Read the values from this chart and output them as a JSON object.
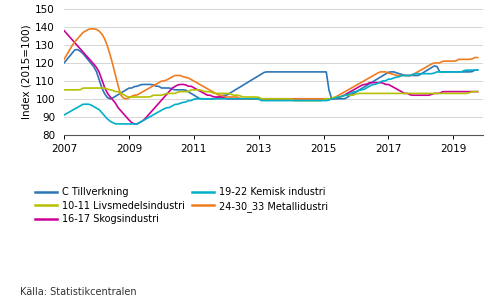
{
  "title": "",
  "ylabel": "Index (2015=100)",
  "source": "Källa: Statistikcentralen",
  "ylim": [
    80,
    150
  ],
  "yticks": [
    80,
    90,
    100,
    110,
    120,
    130,
    140,
    150
  ],
  "x_start_year": 2007,
  "x_end_year": 2019.92,
  "xticks": [
    2007,
    2009,
    2011,
    2013,
    2015,
    2017,
    2019
  ],
  "background_color": "#ffffff",
  "grid_color": "#d0d0d0",
  "series": {
    "C Tillverkning": {
      "color": "#2e75b6",
      "data": [
        120,
        122,
        124,
        126,
        128,
        127,
        126,
        124,
        122,
        120,
        118,
        115,
        110,
        105,
        102,
        100,
        100,
        101,
        102,
        103,
        104,
        105,
        106,
        106,
        107,
        107,
        108,
        108,
        108,
        108,
        108,
        107,
        107,
        106,
        106,
        106,
        106,
        105,
        105,
        105,
        105,
        105,
        104,
        103,
        102,
        101,
        100,
        100,
        100,
        100,
        100,
        100,
        101,
        101,
        102,
        102,
        103,
        104,
        105,
        106,
        107,
        108,
        109,
        110,
        111,
        112,
        113,
        114,
        115,
        115,
        115,
        115,
        115,
        115,
        115,
        115,
        115,
        115,
        115,
        115,
        115,
        115,
        115,
        115,
        115,
        115,
        115,
        115,
        115,
        115,
        100,
        100,
        100,
        100,
        100,
        100,
        101,
        102,
        103,
        104,
        105,
        106,
        107,
        108,
        109,
        110,
        111,
        112,
        113,
        114,
        115,
        115,
        115,
        114,
        114,
        113,
        113,
        113,
        113,
        113,
        113,
        114,
        115,
        116,
        117,
        118,
        119,
        115,
        115,
        115,
        115,
        115,
        115,
        115,
        115,
        115,
        115,
        115,
        115,
        116,
        116
      ]
    },
    "16-17 Skogsindustri": {
      "color": "#cc0099",
      "data": [
        138,
        136,
        134,
        132,
        130,
        128,
        126,
        124,
        122,
        120,
        118,
        115,
        110,
        105,
        102,
        100,
        98,
        95,
        93,
        91,
        89,
        87,
        86,
        86,
        87,
        88,
        90,
        92,
        94,
        96,
        98,
        100,
        102,
        104,
        106,
        107,
        108,
        108,
        108,
        107,
        107,
        106,
        105,
        104,
        103,
        102,
        102,
        101,
        101,
        101,
        101,
        100,
        100,
        100,
        100,
        100,
        100,
        100,
        100,
        100,
        100,
        100,
        100,
        100,
        100,
        100,
        100,
        100,
        100,
        100,
        100,
        100,
        100,
        100,
        100,
        100,
        100,
        100,
        100,
        100,
        100,
        100,
        100,
        100,
        100,
        100,
        101,
        101,
        102,
        103,
        104,
        105,
        106,
        107,
        108,
        108,
        109,
        109,
        109,
        109,
        109,
        108,
        108,
        107,
        106,
        105,
        104,
        103,
        103,
        102,
        102,
        102,
        102,
        102,
        102,
        102,
        103,
        103,
        103,
        104,
        104,
        104,
        104,
        104,
        104,
        104,
        104,
        104,
        104,
        104,
        104
      ]
    },
    "24-30_33 Metallidustri": {
      "color": "#f07c20",
      "data": [
        122,
        125,
        128,
        131,
        133,
        135,
        137,
        138,
        139,
        139,
        139,
        138,
        136,
        133,
        128,
        122,
        115,
        108,
        102,
        100,
        100,
        101,
        102,
        102,
        103,
        104,
        105,
        106,
        107,
        108,
        109,
        110,
        110,
        111,
        112,
        113,
        113,
        113,
        112,
        112,
        111,
        110,
        109,
        108,
        107,
        106,
        105,
        104,
        103,
        102,
        102,
        101,
        101,
        101,
        101,
        101,
        100,
        100,
        100,
        100,
        100,
        100,
        100,
        100,
        100,
        100,
        100,
        100,
        100,
        100,
        100,
        100,
        100,
        100,
        100,
        100,
        100,
        100,
        100,
        100,
        100,
        100,
        100,
        100,
        100,
        100,
        101,
        102,
        103,
        104,
        105,
        106,
        107,
        108,
        109,
        110,
        111,
        112,
        113,
        114,
        115,
        115,
        115,
        114,
        114,
        113,
        113,
        113,
        113,
        113,
        113,
        114,
        115,
        116,
        117,
        118,
        119,
        120,
        120,
        120,
        121,
        121,
        121,
        121,
        121,
        122,
        122,
        122,
        122,
        122,
        123,
        123
      ]
    },
    "10-11 Livsmedelsindustri": {
      "color": "#b5c100",
      "data": [
        105,
        105,
        105,
        105,
        105,
        105,
        106,
        106,
        106,
        106,
        106,
        106,
        106,
        106,
        105,
        105,
        104,
        104,
        103,
        102,
        101,
        101,
        101,
        101,
        101,
        101,
        101,
        101,
        102,
        102,
        102,
        102,
        103,
        103,
        103,
        103,
        104,
        104,
        104,
        104,
        105,
        105,
        105,
        105,
        104,
        104,
        104,
        103,
        103,
        103,
        103,
        103,
        103,
        102,
        102,
        102,
        101,
        101,
        101,
        101,
        101,
        101,
        100,
        100,
        100,
        100,
        100,
        100,
        100,
        100,
        100,
        100,
        99,
        99,
        99,
        99,
        99,
        99,
        99,
        99,
        99,
        99,
        100,
        100,
        100,
        101,
        101,
        101,
        102,
        102,
        102,
        102,
        103,
        103,
        103,
        103,
        103,
        103,
        103,
        103,
        103,
        103,
        103,
        103,
        103,
        103,
        103,
        103,
        103,
        103,
        103,
        103,
        103,
        103,
        103,
        103,
        103,
        103,
        103,
        103,
        103,
        103,
        103,
        103,
        103,
        103,
        103,
        103,
        104,
        104,
        104
      ]
    },
    "19-22 Kemisk industri": {
      "color": "#00b0c8",
      "data": [
        91,
        92,
        93,
        94,
        95,
        96,
        97,
        97,
        97,
        96,
        95,
        94,
        92,
        90,
        88,
        87,
        86,
        86,
        86,
        86,
        86,
        86,
        86,
        86,
        87,
        88,
        89,
        90,
        91,
        92,
        93,
        94,
        95,
        95,
        96,
        97,
        97,
        98,
        98,
        99,
        99,
        100,
        100,
        100,
        100,
        100,
        100,
        100,
        100,
        100,
        100,
        100,
        100,
        100,
        100,
        100,
        100,
        100,
        100,
        100,
        100,
        100,
        99,
        99,
        99,
        99,
        99,
        99,
        99,
        99,
        99,
        99,
        99,
        99,
        99,
        99,
        99,
        99,
        99,
        99,
        99,
        99,
        99,
        99,
        100,
        100,
        101,
        101,
        102,
        102,
        103,
        104,
        104,
        105,
        105,
        106,
        107,
        108,
        108,
        109,
        110,
        110,
        111,
        111,
        112,
        112,
        113,
        113,
        113,
        113,
        114,
        114,
        114,
        114,
        114,
        114,
        114,
        115,
        115,
        115,
        115,
        115,
        115,
        115,
        115,
        115,
        116,
        116,
        116,
        116,
        116
      ]
    }
  },
  "legend_col1": [
    {
      "label": "C Tillverkning",
      "color": "#2e75b6"
    },
    {
      "label": "16-17 Skogsindustri",
      "color": "#cc0099"
    },
    {
      "label": "24-30_33 Metallidustri",
      "color": "#f07c20"
    }
  ],
  "legend_col2": [
    {
      "label": "10-11 Livsmedelsindustri",
      "color": "#b5c100"
    },
    {
      "label": "19-22 Kemisk industri",
      "color": "#00b0c8"
    }
  ]
}
